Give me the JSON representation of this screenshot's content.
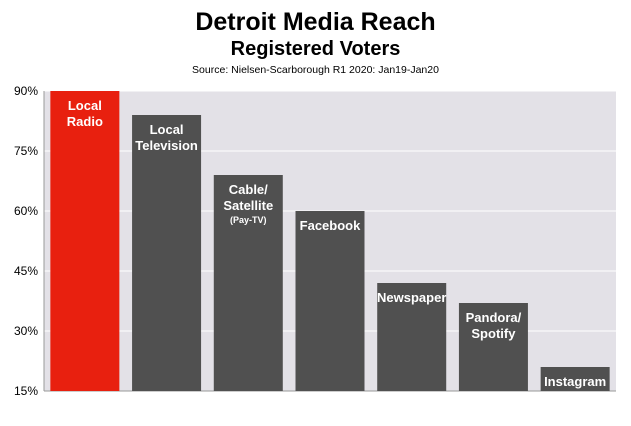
{
  "header": {
    "title": "Detroit Media Reach",
    "subtitle": "Registered Voters",
    "source": "Source: Nielsen-Scarborough R1 2020: Jan19-Jan20"
  },
  "chart_data": {
    "type": "bar",
    "title": "Detroit Media Reach",
    "subtitle": "Registered Voters",
    "ylim": [
      15,
      90
    ],
    "yticks": [
      15,
      30,
      45,
      60,
      75,
      90
    ],
    "ytick_labels": [
      "15%",
      "30%",
      "45%",
      "60%",
      "75%",
      "90%"
    ],
    "grid": true,
    "categories": [
      {
        "lines": [
          "Local",
          "Radio"
        ],
        "sub": ""
      },
      {
        "lines": [
          "Local",
          "Television"
        ],
        "sub": ""
      },
      {
        "lines": [
          "Cable/",
          "Satellite"
        ],
        "sub": "(Pay-TV)"
      },
      {
        "lines": [
          "Facebook"
        ],
        "sub": ""
      },
      {
        "lines": [
          "Newspaper"
        ],
        "sub": ""
      },
      {
        "lines": [
          "Pandora/",
          "Spotify"
        ],
        "sub": ""
      },
      {
        "lines": [
          "Instagram"
        ],
        "sub": ""
      }
    ],
    "values": [
      90,
      84,
      69,
      60,
      42,
      37,
      21
    ],
    "colors": [
      "#e8200f",
      "#505050",
      "#505050",
      "#505050",
      "#505050",
      "#505050",
      "#505050"
    ],
    "plot_background": "#e3e1e7",
    "grid_color": "#ffffff"
  }
}
